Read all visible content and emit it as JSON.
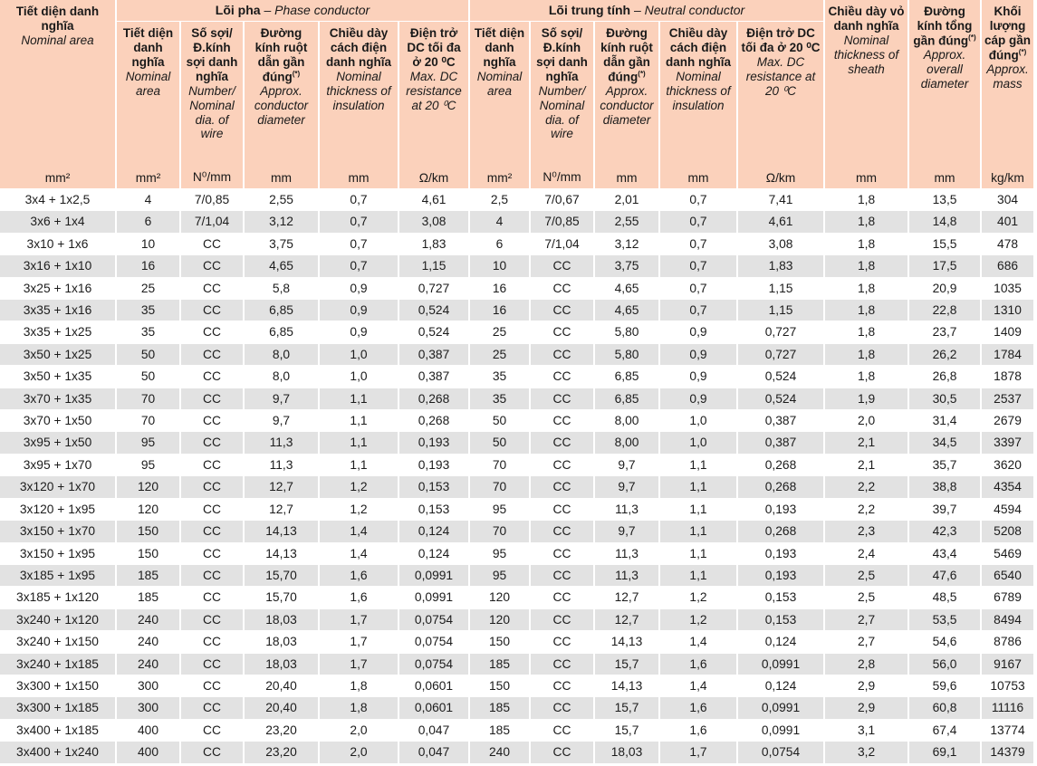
{
  "colors": {
    "header_bg": "#fbd1bb",
    "row_bg": "#ffffff",
    "row_alt_bg": "#e2e2e2",
    "text": "#1c1c1c",
    "separator": "#ffffff"
  },
  "header": {
    "col_area": {
      "vn": "Tiết diện danh nghĩa",
      "en": "Nominal area",
      "unit": "mm²"
    },
    "groups": [
      {
        "vn": "Lõi pha",
        "sep": " – ",
        "en": "Phase conductor"
      },
      {
        "vn": "Lõi trung tính",
        "sep": " – ",
        "en": "Neutral conductor"
      }
    ],
    "sub_columns": [
      {
        "vn": "Tiết diện danh nghĩa",
        "en": "Nominal area",
        "unit": "mm²"
      },
      {
        "vn": "Số sợi/ Đ.kính sợi danh nghĩa",
        "en": "Number/ Nominal dia. of wire",
        "unit": "N⁰/mm"
      },
      {
        "vn": "Đường kính ruột dẫn gần đúng",
        "sup": "(*)",
        "en": "Approx. conductor diameter",
        "unit": "mm"
      },
      {
        "vn": "Chiều dày cách điện danh nghĩa",
        "en": "Nominal thickness of insulation",
        "unit": "mm"
      },
      {
        "vn": "Điện trở DC tối đa ở 20 ⁰C",
        "en": "Max. DC resistance at 20 ⁰C",
        "unit": "Ω/km"
      }
    ],
    "col_sheath": {
      "vn": "Chiều dày vỏ danh nghĩa",
      "en": "Nominal thickness of sheath",
      "unit": "mm"
    },
    "col_overall": {
      "vn": "Đường kính tổng gần đúng",
      "sup": "(*)",
      "en": "Approx. overall diameter",
      "unit": "mm"
    },
    "col_mass": {
      "vn": "Khối lượng cáp gần đúng",
      "sup": "(*)",
      "en": "Approx. mass",
      "unit": "kg/km"
    }
  },
  "rows": [
    [
      "3x4 + 1x2,5",
      "4",
      "7/0,85",
      "2,55",
      "0,7",
      "4,61",
      "2,5",
      "7/0,67",
      "2,01",
      "0,7",
      "7,41",
      "1,8",
      "13,5",
      "304"
    ],
    [
      "3x6 + 1x4",
      "6",
      "7/1,04",
      "3,12",
      "0,7",
      "3,08",
      "4",
      "7/0,85",
      "2,55",
      "0,7",
      "4,61",
      "1,8",
      "14,8",
      "401"
    ],
    [
      "3x10 + 1x6",
      "10",
      "CC",
      "3,75",
      "0,7",
      "1,83",
      "6",
      "7/1,04",
      "3,12",
      "0,7",
      "3,08",
      "1,8",
      "15,5",
      "478"
    ],
    [
      "3x16 + 1x10",
      "16",
      "CC",
      "4,65",
      "0,7",
      "1,15",
      "10",
      "CC",
      "3,75",
      "0,7",
      "1,83",
      "1,8",
      "17,5",
      "686"
    ],
    [
      "3x25 + 1x16",
      "25",
      "CC",
      "5,8",
      "0,9",
      "0,727",
      "16",
      "CC",
      "4,65",
      "0,7",
      "1,15",
      "1,8",
      "20,9",
      "1035"
    ],
    [
      "3x35 + 1x16",
      "35",
      "CC",
      "6,85",
      "0,9",
      "0,524",
      "16",
      "CC",
      "4,65",
      "0,7",
      "1,15",
      "1,8",
      "22,8",
      "1310"
    ],
    [
      "3x35 + 1x25",
      "35",
      "CC",
      "6,85",
      "0,9",
      "0,524",
      "25",
      "CC",
      "5,80",
      "0,9",
      "0,727",
      "1,8",
      "23,7",
      "1409"
    ],
    [
      "3x50 + 1x25",
      "50",
      "CC",
      "8,0",
      "1,0",
      "0,387",
      "25",
      "CC",
      "5,80",
      "0,9",
      "0,727",
      "1,8",
      "26,2",
      "1784"
    ],
    [
      "3x50 + 1x35",
      "50",
      "CC",
      "8,0",
      "1,0",
      "0,387",
      "35",
      "CC",
      "6,85",
      "0,9",
      "0,524",
      "1,8",
      "26,8",
      "1878"
    ],
    [
      "3x70 + 1x35",
      "70",
      "CC",
      "9,7",
      "1,1",
      "0,268",
      "35",
      "CC",
      "6,85",
      "0,9",
      "0,524",
      "1,9",
      "30,5",
      "2537"
    ],
    [
      "3x70 + 1x50",
      "70",
      "CC",
      "9,7",
      "1,1",
      "0,268",
      "50",
      "CC",
      "8,00",
      "1,0",
      "0,387",
      "2,0",
      "31,4",
      "2679"
    ],
    [
      "3x95 + 1x50",
      "95",
      "CC",
      "11,3",
      "1,1",
      "0,193",
      "50",
      "CC",
      "8,00",
      "1,0",
      "0,387",
      "2,1",
      "34,5",
      "3397"
    ],
    [
      "3x95 + 1x70",
      "95",
      "CC",
      "11,3",
      "1,1",
      "0,193",
      "70",
      "CC",
      "9,7",
      "1,1",
      "0,268",
      "2,1",
      "35,7",
      "3620"
    ],
    [
      "3x120 + 1x70",
      "120",
      "CC",
      "12,7",
      "1,2",
      "0,153",
      "70",
      "CC",
      "9,7",
      "1,1",
      "0,268",
      "2,2",
      "38,8",
      "4354"
    ],
    [
      "3x120 + 1x95",
      "120",
      "CC",
      "12,7",
      "1,2",
      "0,153",
      "95",
      "CC",
      "11,3",
      "1,1",
      "0,193",
      "2,2",
      "39,7",
      "4594"
    ],
    [
      "3x150 + 1x70",
      "150",
      "CC",
      "14,13",
      "1,4",
      "0,124",
      "70",
      "CC",
      "9,7",
      "1,1",
      "0,268",
      "2,3",
      "42,3",
      "5208"
    ],
    [
      "3x150 + 1x95",
      "150",
      "CC",
      "14,13",
      "1,4",
      "0,124",
      "95",
      "CC",
      "11,3",
      "1,1",
      "0,193",
      "2,4",
      "43,4",
      "5469"
    ],
    [
      "3x185 + 1x95",
      "185",
      "CC",
      "15,70",
      "1,6",
      "0,0991",
      "95",
      "CC",
      "11,3",
      "1,1",
      "0,193",
      "2,5",
      "47,6",
      "6540"
    ],
    [
      "3x185 + 1x120",
      "185",
      "CC",
      "15,70",
      "1,6",
      "0,0991",
      "120",
      "CC",
      "12,7",
      "1,2",
      "0,153",
      "2,5",
      "48,5",
      "6789"
    ],
    [
      "3x240 + 1x120",
      "240",
      "CC",
      "18,03",
      "1,7",
      "0,0754",
      "120",
      "CC",
      "12,7",
      "1,2",
      "0,153",
      "2,7",
      "53,5",
      "8494"
    ],
    [
      "3x240 + 1x150",
      "240",
      "CC",
      "18,03",
      "1,7",
      "0,0754",
      "150",
      "CC",
      "14,13",
      "1,4",
      "0,124",
      "2,7",
      "54,6",
      "8786"
    ],
    [
      "3x240 + 1x185",
      "240",
      "CC",
      "18,03",
      "1,7",
      "0,0754",
      "185",
      "CC",
      "15,7",
      "1,6",
      "0,0991",
      "2,8",
      "56,0",
      "9167"
    ],
    [
      "3x300 + 1x150",
      "300",
      "CC",
      "20,40",
      "1,8",
      "0,0601",
      "150",
      "CC",
      "14,13",
      "1,4",
      "0,124",
      "2,9",
      "59,6",
      "10753"
    ],
    [
      "3x300 + 1x185",
      "300",
      "CC",
      "20,40",
      "1,8",
      "0,0601",
      "185",
      "CC",
      "15,7",
      "1,6",
      "0,0991",
      "2,9",
      "60,8",
      "11116"
    ],
    [
      "3x400 + 1x185",
      "400",
      "CC",
      "23,20",
      "2,0",
      "0,047",
      "185",
      "CC",
      "15,7",
      "1,6",
      "0,0991",
      "3,1",
      "67,4",
      "13774"
    ],
    [
      "3x400 + 1x240",
      "400",
      "CC",
      "23,20",
      "2,0",
      "0,047",
      "240",
      "CC",
      "18,03",
      "1,7",
      "0,0754",
      "3,2",
      "69,1",
      "14379"
    ]
  ]
}
